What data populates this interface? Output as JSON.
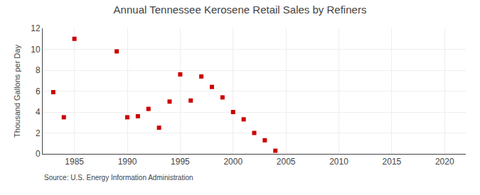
{
  "chart_data": {
    "type": "scatter",
    "title": "Annual Tennessee Kerosene Retail Sales by Refiners",
    "ylabel": "Thousand Gallons per Day",
    "source": "Source: U.S. Energy Information Administration",
    "x": [
      1983,
      1984,
      1985,
      1989,
      1990,
      1991,
      1992,
      1993,
      1994,
      1995,
      1996,
      1997,
      1998,
      1999,
      2000,
      2001,
      2002,
      2003,
      2004
    ],
    "values": [
      5.9,
      3.5,
      11.0,
      9.8,
      3.5,
      3.6,
      4.3,
      2.5,
      5.0,
      7.6,
      5.1,
      7.4,
      6.4,
      5.4,
      4.0,
      3.3,
      2.0,
      1.3,
      0.3
    ],
    "color": "#cc0000",
    "marker": "square",
    "xlim": [
      1982,
      2022
    ],
    "ylim": [
      0,
      12
    ],
    "xticks": [
      1985,
      1990,
      1995,
      2000,
      2005,
      2010,
      2015,
      2020
    ],
    "yticks": [
      0,
      2,
      4,
      6,
      8,
      10,
      12
    ],
    "grid": true
  }
}
